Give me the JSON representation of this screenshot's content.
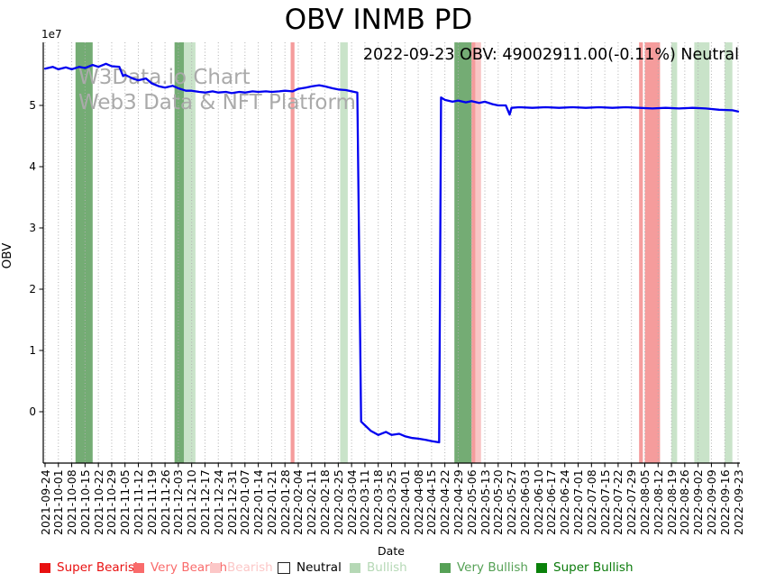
{
  "title": "OBV INMB PD",
  "annotation": "2022-09-23 OBV: 49002911.00(-0.11%) Neutral",
  "watermark": {
    "line1": "W3Data.io Chart",
    "line2": "Web3 Data & NFT Platform",
    "color": "#aaaaaa"
  },
  "chart_data": {
    "type": "line",
    "title": "OBV INMB PD",
    "xlabel": "Date",
    "ylabel": "OBV",
    "y_offset_label": "1e7",
    "y_unit": 10000000,
    "yticks": [
      0,
      1,
      2,
      3,
      4,
      5
    ],
    "ylim": [
      -0.85,
      6.03
    ],
    "grid": "vertical-dotted",
    "line_color": "#0000f0",
    "x_tick_labels": [
      "2021-09-24",
      "2021-10-01",
      "2021-10-08",
      "2021-10-15",
      "2021-10-22",
      "2021-10-29",
      "2021-11-05",
      "2021-11-12",
      "2021-11-19",
      "2021-11-26",
      "2021-12-03",
      "2021-12-10",
      "2021-12-17",
      "2021-12-24",
      "2021-12-31",
      "2022-01-07",
      "2022-01-14",
      "2022-01-21",
      "2022-01-28",
      "2022-02-04",
      "2022-02-11",
      "2022-02-18",
      "2022-02-25",
      "2022-03-04",
      "2022-03-11",
      "2022-03-18",
      "2022-03-25",
      "2022-04-01",
      "2022-04-08",
      "2022-04-15",
      "2022-04-22",
      "2022-04-29",
      "2022-05-06",
      "2022-05-13",
      "2022-05-20",
      "2022-05-27",
      "2022-06-03",
      "2022-06-10",
      "2022-06-17",
      "2022-06-24",
      "2022-07-01",
      "2022-07-08",
      "2022-07-15",
      "2022-07-22",
      "2022-07-29",
      "2022-08-05",
      "2022-08-12",
      "2022-08-19",
      "2022-08-26",
      "2022-09-02",
      "2022-09-09",
      "2022-09-16",
      "2022-09-23"
    ],
    "series": [
      {
        "name": "OBV",
        "points": [
          [
            "2021-09-24",
            5.6
          ],
          [
            "2021-09-28",
            5.63
          ],
          [
            "2021-10-01",
            5.59
          ],
          [
            "2021-10-05",
            5.62
          ],
          [
            "2021-10-08",
            5.59
          ],
          [
            "2021-10-12",
            5.63
          ],
          [
            "2021-10-15",
            5.61
          ],
          [
            "2021-10-19",
            5.66
          ],
          [
            "2021-10-22",
            5.63
          ],
          [
            "2021-10-26",
            5.68
          ],
          [
            "2021-10-29",
            5.64
          ],
          [
            "2021-11-02",
            5.63
          ],
          [
            "2021-11-04",
            5.48
          ],
          [
            "2021-11-05",
            5.5
          ],
          [
            "2021-11-09",
            5.44
          ],
          [
            "2021-11-12",
            5.41
          ],
          [
            "2021-11-16",
            5.44
          ],
          [
            "2021-11-19",
            5.36
          ],
          [
            "2021-11-23",
            5.31
          ],
          [
            "2021-11-26",
            5.29
          ],
          [
            "2021-11-30",
            5.32
          ],
          [
            "2021-12-03",
            5.28
          ],
          [
            "2021-12-07",
            5.24
          ],
          [
            "2021-12-10",
            5.24
          ],
          [
            "2021-12-14",
            5.22
          ],
          [
            "2021-12-17",
            5.21
          ],
          [
            "2021-12-21",
            5.23
          ],
          [
            "2021-12-24",
            5.21
          ],
          [
            "2021-12-28",
            5.22
          ],
          [
            "2021-12-31",
            5.2
          ],
          [
            "2022-01-04",
            5.22
          ],
          [
            "2022-01-07",
            5.21
          ],
          [
            "2022-01-11",
            5.23
          ],
          [
            "2022-01-14",
            5.22
          ],
          [
            "2022-01-18",
            5.23
          ],
          [
            "2022-01-21",
            5.22
          ],
          [
            "2022-01-25",
            5.23
          ],
          [
            "2022-01-28",
            5.24
          ],
          [
            "2022-02-01",
            5.23
          ],
          [
            "2022-02-04",
            5.27
          ],
          [
            "2022-02-08",
            5.29
          ],
          [
            "2022-02-11",
            5.31
          ],
          [
            "2022-02-15",
            5.33
          ],
          [
            "2022-02-18",
            5.31
          ],
          [
            "2022-02-22",
            5.28
          ],
          [
            "2022-02-25",
            5.26
          ],
          [
            "2022-03-01",
            5.25
          ],
          [
            "2022-03-04",
            5.23
          ],
          [
            "2022-03-07",
            5.21
          ],
          [
            "2022-03-09",
            -0.16
          ],
          [
            "2022-03-11",
            -0.22
          ],
          [
            "2022-03-14",
            -0.31
          ],
          [
            "2022-03-18",
            -0.38
          ],
          [
            "2022-03-22",
            -0.33
          ],
          [
            "2022-03-25",
            -0.38
          ],
          [
            "2022-03-29",
            -0.36
          ],
          [
            "2022-04-01",
            -0.4
          ],
          [
            "2022-04-05",
            -0.43
          ],
          [
            "2022-04-08",
            -0.44
          ],
          [
            "2022-04-12",
            -0.46
          ],
          [
            "2022-04-15",
            -0.48
          ],
          [
            "2022-04-19",
            -0.5
          ],
          [
            "2022-04-20",
            5.13
          ],
          [
            "2022-04-22",
            5.09
          ],
          [
            "2022-04-26",
            5.06
          ],
          [
            "2022-04-29",
            5.08
          ],
          [
            "2022-05-03",
            5.05
          ],
          [
            "2022-05-06",
            5.07
          ],
          [
            "2022-05-10",
            5.04
          ],
          [
            "2022-05-13",
            5.06
          ],
          [
            "2022-05-17",
            5.02
          ],
          [
            "2022-05-20",
            5.0
          ],
          [
            "2022-05-24",
            5.0
          ],
          [
            "2022-05-26",
            4.85
          ],
          [
            "2022-05-27",
            4.96
          ],
          [
            "2022-05-31",
            4.97
          ],
          [
            "2022-06-07",
            4.96
          ],
          [
            "2022-06-14",
            4.97
          ],
          [
            "2022-06-21",
            4.96
          ],
          [
            "2022-06-28",
            4.97
          ],
          [
            "2022-07-05",
            4.96
          ],
          [
            "2022-07-12",
            4.97
          ],
          [
            "2022-07-19",
            4.96
          ],
          [
            "2022-07-26",
            4.97
          ],
          [
            "2022-08-02",
            4.96
          ],
          [
            "2022-08-09",
            4.95
          ],
          [
            "2022-08-16",
            4.96
          ],
          [
            "2022-08-23",
            4.95
          ],
          [
            "2022-08-30",
            4.96
          ],
          [
            "2022-09-06",
            4.95
          ],
          [
            "2022-09-13",
            4.93
          ],
          [
            "2022-09-20",
            4.92
          ],
          [
            "2022-09-23",
            4.9
          ]
        ]
      }
    ],
    "bands": [
      {
        "category": "very_bullish",
        "start": "2021-10-10",
        "end": "2021-10-19"
      },
      {
        "category": "very_bullish",
        "start": "2021-12-01",
        "end": "2021-12-06"
      },
      {
        "category": "bullish",
        "start": "2021-12-06",
        "end": "2021-12-12"
      },
      {
        "category": "very_bearish",
        "start": "2022-01-31",
        "end": "2022-02-02"
      },
      {
        "category": "bullish",
        "start": "2022-02-26",
        "end": "2022-03-02"
      },
      {
        "category": "very_bullish",
        "start": "2022-04-27",
        "end": "2022-05-06"
      },
      {
        "category": "very_bearish",
        "start": "2022-05-06",
        "end": "2022-05-08"
      },
      {
        "category": "bearish",
        "start": "2022-05-08",
        "end": "2022-05-11"
      },
      {
        "category": "very_bearish",
        "start": "2022-08-02",
        "end": "2022-08-04"
      },
      {
        "category": "very_bearish",
        "start": "2022-08-05",
        "end": "2022-08-13"
      },
      {
        "category": "bullish",
        "start": "2022-08-19",
        "end": "2022-08-22"
      },
      {
        "category": "bullish",
        "start": "2022-08-31",
        "end": "2022-09-08"
      },
      {
        "category": "bullish",
        "start": "2022-09-16",
        "end": "2022-09-20"
      }
    ],
    "band_colors": {
      "very_bullish": "#74ac74",
      "bullish": "#c9e3c9",
      "very_bearish": "#f59c9c",
      "bearish": "#f9c5c5"
    },
    "legend": [
      {
        "label": "Super Bearish",
        "swatch": "#e81111",
        "text_color": "#e81111"
      },
      {
        "label": "Very Bearish",
        "swatch": "#f96b6b",
        "text_color": "#f96b6b"
      },
      {
        "label": "Bearish",
        "swatch": "#fcc7c7",
        "text_color": "#fcc7c7"
      },
      {
        "label": "Neutral",
        "swatch": "#ffffff",
        "text_color": "#000000"
      },
      {
        "label": "Bullish",
        "swatch": "#b5d8b5",
        "text_color": "#b5d8b5"
      },
      {
        "label": "Very Bullish",
        "swatch": "#56a156",
        "text_color": "#56a156"
      },
      {
        "label": "Super Bullish",
        "swatch": "#0a810a",
        "text_color": "#0a7a0a"
      }
    ],
    "legend_position": "bottom"
  }
}
